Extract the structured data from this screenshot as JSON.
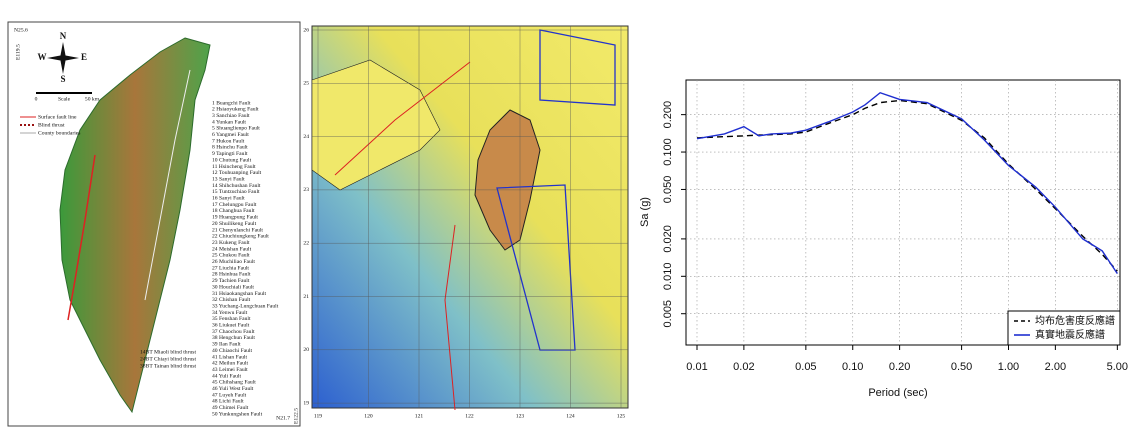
{
  "fault_map": {
    "corner_labels": [
      "N25.6",
      "E119.5",
      "E122.5",
      "N21.7"
    ],
    "compass": [
      "N",
      "S",
      "E",
      "W"
    ],
    "scale": [
      "0",
      "Scale",
      "50 km"
    ],
    "legend": [
      "Surface fault line",
      "Blind thrust",
      "County boundaries"
    ],
    "faults": [
      "1 Buangchi Fault",
      "2 Hsiaoyukeng Fault",
      "3 Sanchiao Fault",
      "4 Yunkan Fault",
      "5 Shuanglienpo Fault",
      "6 Yangmei Fault",
      "7 Hukou Fault",
      "8 Hsinchu Fault",
      "9 Tapingti Fault",
      "10 Chutung Fault",
      "11 Hsincheng Fault",
      "12 Touhuanping Fault",
      "13 Sanyi Fault",
      "14 Shihchushan Fault",
      "15 Tuntzuchiao Fault",
      "16 Sanyi Fault",
      "17 Chelungpu Fault",
      "18 Changhua Fault",
      "19 Huangpung Fault",
      "20 Shuilikeng Fault",
      "21 Chenyulanchi Fault",
      "22 Chiuchiungkeng Fault",
      "23 Kukeng Fault",
      "24 Meishan Fault",
      "25 Chukou Fault",
      "26 Muchiliao Fault",
      "27 Liuchia Fault",
      "28 Hsinhua Fault",
      "29 Tachien Fault",
      "30 Houchiali Fault",
      "31 Hsiaokangshan Fault",
      "32 Chishan Fault",
      "33 Yuchang-Lungchuan Fault",
      "34 Yenwu Fault",
      "35 Fenshan Fault",
      "36 Liukuei Fault",
      "37 Chaochou Fault",
      "38 Hengchun Fault",
      "39 Ilan Fault",
      "40 Chiaochi Fault",
      "41 Lishan Fault",
      "42 Meilun Fault",
      "43 Leimei Fault",
      "44 Yuli Fault",
      "45 Chihshang Fault",
      "46 Yuli West Fault",
      "47 Luyeh Fault",
      "48 Lichi Fault",
      "49 Chimei Fault",
      "50 Yunkungshen Fault"
    ],
    "blind_thrusts": [
      "14BT Miaoli blind thrust",
      "24BT Chiayi blind thrust",
      "38BT Tainan blind thrust"
    ]
  },
  "bathymetry_map": {
    "lat_labels": [
      "26",
      "25",
      "24",
      "23",
      "22",
      "21",
      "20",
      "19"
    ],
    "lon_labels": [
      "119",
      "120",
      "121",
      "122",
      "123",
      "124",
      "125"
    ]
  },
  "chart_data": {
    "type": "line",
    "xlabel": "Period (sec)",
    "ylabel": "Sa (g)",
    "xscale": "log",
    "yscale": "log",
    "grid": true,
    "legend": "lower right",
    "x": [
      0.01,
      0.015,
      0.02,
      0.025,
      0.03,
      0.04,
      0.05,
      0.07,
      0.1,
      0.12,
      0.15,
      0.2,
      0.3,
      0.5,
      0.7,
      1.0,
      1.5,
      2.0,
      3.0,
      4.0,
      5.0
    ],
    "series": [
      {
        "name": "均布危害度反應譜",
        "color": "#000000",
        "dash": true,
        "values": [
          0.13,
          0.133,
          0.135,
          0.137,
          0.138,
          0.14,
          0.145,
          0.17,
          0.2,
          0.225,
          0.25,
          0.26,
          0.245,
          0.18,
          0.13,
          0.08,
          0.05,
          0.035,
          0.021,
          0.015,
          0.011
        ]
      },
      {
        "name": "真實地震反應譜",
        "color": "#1f2fd0",
        "dash": false,
        "values": [
          0.128,
          0.14,
          0.16,
          0.135,
          0.14,
          0.142,
          0.15,
          0.175,
          0.21,
          0.24,
          0.3,
          0.265,
          0.25,
          0.185,
          0.125,
          0.078,
          0.052,
          0.036,
          0.02,
          0.016,
          0.0105
        ]
      }
    ],
    "xlim": [
      0.0085,
      5.2
    ],
    "ylim": [
      0.0028,
      0.38
    ],
    "xticks": [
      0.01,
      0.02,
      0.05,
      {
        "value": 0.1,
        "label": "0.10"
      },
      {
        "value": 0.2,
        "label": "0.20"
      },
      {
        "value": 0.5,
        "label": "0.50"
      },
      {
        "value": 1,
        "label": "1.00"
      },
      {
        "value": 2,
        "label": "2.00"
      },
      {
        "value": 5,
        "label": "5.00"
      }
    ],
    "yticks": [
      0.005,
      {
        "value": 0.01,
        "label": "0.010"
      },
      {
        "value": 0.02,
        "label": "0.020"
      },
      {
        "value": 0.05,
        "label": "0.050"
      },
      {
        "value": 0.1,
        "label": "0.100"
      },
      {
        "value": 0.2,
        "label": "0.200"
      }
    ]
  }
}
